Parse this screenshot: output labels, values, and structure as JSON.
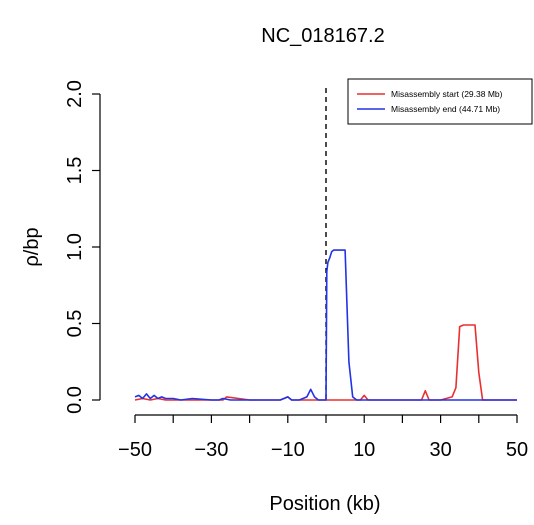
{
  "chart_data": {
    "type": "line",
    "title": "NC_018167.2",
    "xlabel": "Position (kb)",
    "ylabel": "ρ/bp",
    "xlim": [
      -50,
      50
    ],
    "ylim": [
      0,
      2
    ],
    "x_ticks": [
      -50,
      -40,
      -30,
      -20,
      -10,
      0,
      10,
      20,
      30,
      40,
      50
    ],
    "x_tick_labels": [
      "−50",
      "",
      "−30",
      "",
      "−10",
      "",
      "10",
      "",
      "30",
      "",
      "50"
    ],
    "y_ticks": [
      0,
      0.5,
      1,
      1.5,
      2
    ],
    "y_tick_labels": [
      "0.0",
      "0.5",
      "1.0",
      "1.5",
      "2.0"
    ],
    "reference_line": {
      "x": 0,
      "style": "dashed"
    },
    "legend_position": "top-right",
    "grid": false,
    "series": [
      {
        "name": "Misassembly start (29.38 Mb)",
        "color": "#e8312f",
        "x": [
          -50,
          -48,
          -46,
          -44,
          -42,
          -40,
          -36,
          -30,
          -27,
          -26,
          -20,
          -12,
          -10,
          -9,
          -5,
          0,
          5,
          9,
          10,
          11,
          20,
          25,
          26,
          27,
          30,
          33,
          34,
          35,
          36,
          39,
          40,
          41,
          45,
          50
        ],
        "y": [
          0.0,
          0.01,
          0.0,
          0.01,
          0.0,
          0.0,
          0.0,
          0.0,
          0.0,
          0.02,
          0.0,
          0.0,
          0.02,
          0.0,
          0.0,
          0.0,
          0.0,
          0.0,
          0.03,
          0.0,
          0.0,
          0.0,
          0.06,
          0.0,
          0.0,
          0.02,
          0.08,
          0.48,
          0.49,
          0.49,
          0.18,
          0.0,
          0.0,
          0.0
        ]
      },
      {
        "name": "Misassembly end (44.71 Mb)",
        "color": "#2233e6",
        "x": [
          -50,
          -49,
          -48,
          -47,
          -46,
          -45,
          -44,
          -43,
          -42,
          -40,
          -38,
          -35,
          -30,
          -28,
          -27,
          -25,
          -20,
          -15,
          -12,
          -11,
          -10,
          -9,
          -7,
          -5,
          -4,
          -3,
          -2,
          -1,
          0,
          0.2,
          0.5,
          1,
          1.5,
          2,
          4,
          5,
          6,
          7,
          8,
          10,
          15,
          20,
          30,
          40,
          50
        ],
        "y": [
          0.02,
          0.03,
          0.01,
          0.04,
          0.01,
          0.03,
          0.01,
          0.02,
          0.01,
          0.01,
          0.0,
          0.01,
          0.0,
          0.0,
          0.01,
          0.0,
          0.0,
          0.0,
          0.0,
          0.01,
          0.02,
          0.0,
          0.0,
          0.02,
          0.07,
          0.02,
          0.0,
          0.0,
          0.0,
          0.84,
          0.9,
          0.93,
          0.97,
          0.98,
          0.98,
          0.98,
          0.25,
          0.02,
          0.0,
          0.0,
          0.0,
          0.0,
          0.0,
          0.0,
          0.0
        ]
      }
    ]
  }
}
